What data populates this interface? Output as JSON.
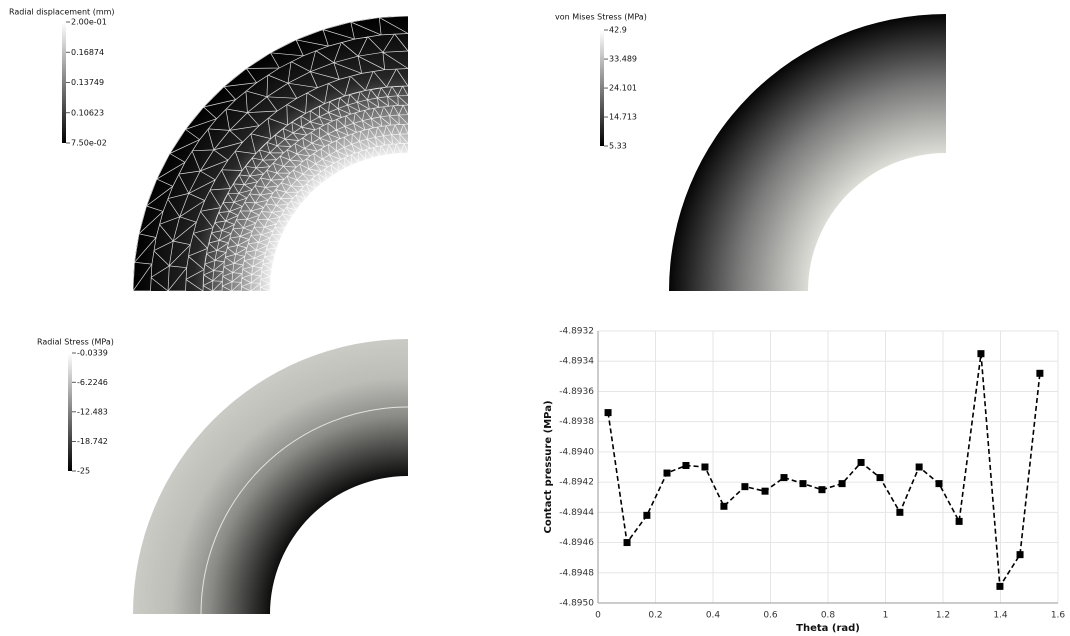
{
  "chart_data": [
    {
      "type": "field",
      "title": "Radial displacement (mm)",
      "ylim": [
        0.075,
        0.2
      ],
      "yticks": [
        {
          "value": 0.2,
          "label": "2.00e-01"
        },
        0.16874,
        0.13749,
        0.10623,
        {
          "value": 0.075,
          "label": "7.50e-02"
        }
      ],
      "colormap": [
        "#000000",
        "#ffffff"
      ]
    },
    {
      "type": "field",
      "title": "von Mises Stress (MPa)",
      "ylim": [
        5.33,
        42.9
      ],
      "yticks": [
        42.9,
        33.489,
        24.101,
        14.713,
        5.33
      ],
      "colormap": [
        "#000000",
        "#ffffff"
      ]
    },
    {
      "type": "field",
      "title": "Radial Stress (MPa)",
      "ylim": [
        -25,
        -0.0339
      ],
      "yticks": [
        -0.0339,
        -6.2246,
        -12.483,
        -18.742,
        -25
      ],
      "colormap": [
        "#000000",
        "#ffffff"
      ]
    },
    {
      "type": "line",
      "xlabel": "Theta (rad)",
      "ylabel": "Contact pressure (MPa)",
      "x": [
        0.035,
        0.101,
        0.17,
        0.24,
        0.306,
        0.372,
        0.438,
        0.511,
        0.581,
        0.647,
        0.713,
        0.779,
        0.849,
        0.915,
        0.981,
        1.05,
        1.117,
        1.186,
        1.256,
        1.332,
        1.398,
        1.468,
        1.537
      ],
      "values": [
        -4.89374,
        -4.8946,
        -4.89442,
        -4.89414,
        -4.89409,
        -4.8941,
        -4.89436,
        -4.89423,
        -4.89426,
        -4.89417,
        -4.89421,
        -4.89425,
        -4.89421,
        -4.89407,
        -4.89417,
        -4.8944,
        -4.8941,
        -4.89421,
        -4.89446,
        -4.89335,
        -4.89489,
        -4.89468,
        -4.89348
      ],
      "color": "#000000",
      "xlim": [
        0,
        1.6
      ],
      "xticks": [
        0,
        0.2,
        0.4,
        0.6,
        0.8,
        1,
        1.2,
        1.4,
        1.6
      ],
      "ylim": [
        -4.895,
        -4.8932
      ],
      "yticks": [
        -4.8932,
        -4.8934,
        -4.8936,
        -4.8938,
        {
          "value": -4.894,
          "label": "-4.8940"
        },
        -4.8942,
        -4.8944,
        -4.8946,
        -4.8948,
        {
          "value": -4.895,
          "label": "-4.8950"
        }
      ],
      "grid": true
    }
  ]
}
